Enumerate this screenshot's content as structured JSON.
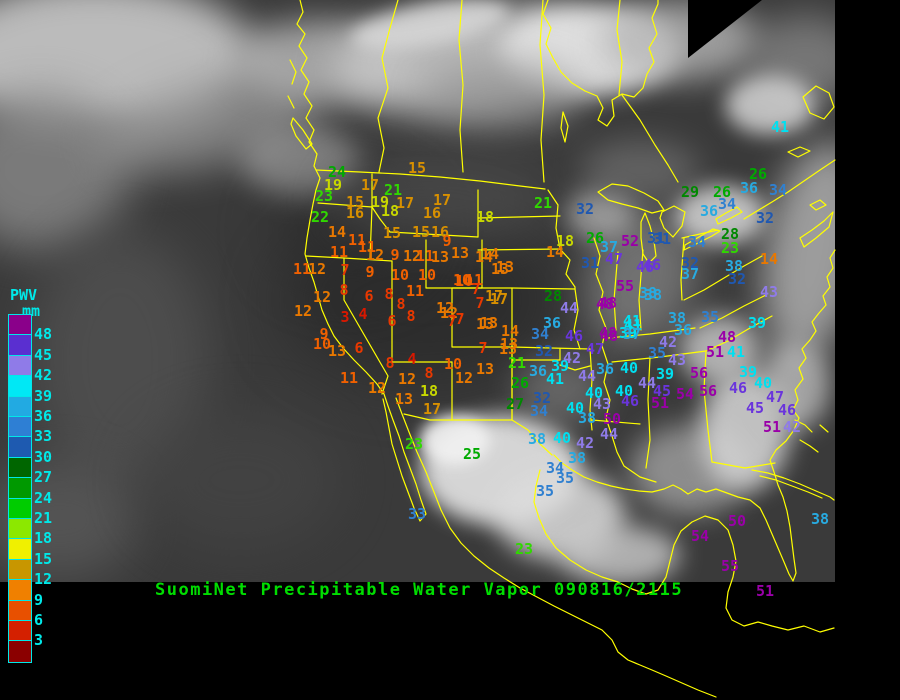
{
  "title": "SuomiNet Precipitable Water Vapor 090816/2115",
  "title_color": "#00DD00",
  "legend": {
    "title": "PWV",
    "units": "mm",
    "text_color": "#00E8E8",
    "labels": [
      "48",
      "45",
      "42",
      "39",
      "36",
      "33",
      "30",
      "27",
      "24",
      "21",
      "18",
      "15",
      "12",
      "9",
      "6",
      "3"
    ],
    "box_colors": [
      "#8A008A",
      "#5A2FD0",
      "#8F7BE8",
      "#00E8F5",
      "#22AAE2",
      "#2E7FD4",
      "#1E5AB0",
      "#006600",
      "#009900",
      "#00CC00",
      "#8CE800",
      "#F0F000",
      "#C89600",
      "#F08000",
      "#E85000",
      "#D42000",
      "#8B0000"
    ]
  },
  "station_color_bins": [
    {
      "min": 48,
      "color": "#9A00A8"
    },
    {
      "min": 45,
      "color": "#6A35DC"
    },
    {
      "min": 42,
      "color": "#8F7BE8"
    },
    {
      "min": 39,
      "color": "#00E0F0"
    },
    {
      "min": 36,
      "color": "#28AAE0"
    },
    {
      "min": 33,
      "color": "#3080D0"
    },
    {
      "min": 30,
      "color": "#2058B0"
    },
    {
      "min": 27,
      "color": "#008800"
    },
    {
      "min": 24,
      "color": "#00AA00"
    },
    {
      "min": 21,
      "color": "#30D800"
    },
    {
      "min": 18,
      "color": "#C8D800"
    },
    {
      "min": 15,
      "color": "#D89000"
    },
    {
      "min": 12,
      "color": "#E87800"
    },
    {
      "min": 9,
      "color": "#F06000"
    },
    {
      "min": 6,
      "color": "#E83800"
    },
    {
      "min": 0,
      "color": "#D81800"
    }
  ],
  "map_line_color": "#FFFF00",
  "stations": [
    [
      15,
      417,
      168
    ],
    [
      24,
      337,
      172
    ],
    [
      19,
      333,
      185
    ],
    [
      17,
      370,
      185
    ],
    [
      21,
      393,
      190
    ],
    [
      23,
      324,
      196
    ],
    [
      15,
      355,
      202
    ],
    [
      19,
      380,
      202
    ],
    [
      17,
      405,
      203
    ],
    [
      17,
      442,
      200
    ],
    [
      22,
      320,
      217
    ],
    [
      16,
      355,
      213
    ],
    [
      18,
      390,
      211
    ],
    [
      16,
      432,
      213
    ],
    [
      18,
      485,
      217
    ],
    [
      14,
      337,
      232
    ],
    [
      15,
      392,
      233
    ],
    [
      15,
      421,
      232
    ],
    [
      16,
      440,
      232
    ],
    [
      11,
      357,
      240
    ],
    [
      9,
      447,
      241
    ],
    [
      11,
      367,
      247
    ],
    [
      11,
      339,
      252
    ],
    [
      12,
      375,
      255
    ],
    [
      9,
      395,
      255
    ],
    [
      12,
      412,
      256
    ],
    [
      11,
      425,
      256
    ],
    [
      13,
      440,
      257
    ],
    [
      14,
      484,
      257
    ],
    [
      11,
      302,
      269
    ],
    [
      12,
      317,
      269
    ],
    [
      7,
      345,
      270
    ],
    [
      9,
      370,
      272
    ],
    [
      10,
      400,
      275
    ],
    [
      10,
      427,
      275
    ],
    [
      13,
      505,
      267
    ],
    [
      10,
      462,
      280
    ],
    [
      11,
      474,
      280
    ],
    [
      12,
      322,
      297
    ],
    [
      8,
      344,
      290
    ],
    [
      6,
      369,
      296
    ],
    [
      8,
      389,
      294
    ],
    [
      11,
      415,
      291
    ],
    [
      12,
      303,
      311
    ],
    [
      3,
      345,
      317
    ],
    [
      4,
      363,
      314
    ],
    [
      8,
      401,
      304
    ],
    [
      6,
      392,
      321
    ],
    [
      8,
      411,
      316
    ],
    [
      12,
      449,
      313
    ],
    [
      7,
      480,
      303
    ],
    [
      17,
      499,
      299
    ],
    [
      7,
      460,
      319
    ],
    [
      13,
      489,
      323
    ],
    [
      9,
      324,
      334
    ],
    [
      10,
      322,
      344
    ],
    [
      13,
      337,
      351
    ],
    [
      6,
      359,
      348
    ],
    [
      7,
      483,
      348
    ],
    [
      13,
      508,
      349
    ],
    [
      8,
      390,
      363
    ],
    [
      4,
      412,
      359
    ],
    [
      10,
      453,
      364
    ],
    [
      8,
      429,
      373
    ],
    [
      13,
      485,
      369
    ],
    [
      12,
      464,
      378
    ],
    [
      11,
      349,
      378
    ],
    [
      12,
      377,
      388
    ],
    [
      12,
      407,
      379
    ],
    [
      18,
      429,
      391
    ],
    [
      13,
      404,
      399
    ],
    [
      17,
      432,
      409
    ],
    [
      21,
      543,
      203
    ],
    [
      32,
      585,
      209
    ],
    [
      18,
      565,
      241
    ],
    [
      26,
      595,
      238
    ],
    [
      37,
      609,
      247
    ],
    [
      52,
      630,
      241
    ],
    [
      31,
      656,
      238
    ],
    [
      14,
      555,
      252
    ],
    [
      31,
      590,
      263
    ],
    [
      47,
      614,
      259
    ],
    [
      46,
      645,
      267
    ],
    [
      13,
      460,
      253
    ],
    [
      14,
      490,
      254
    ],
    [
      13,
      500,
      269
    ],
    [
      10,
      464,
      281
    ],
    [
      7,
      476,
      289
    ],
    [
      17,
      494,
      296
    ],
    [
      55,
      625,
      286
    ],
    [
      48,
      605,
      304
    ],
    [
      38,
      648,
      293
    ],
    [
      28,
      553,
      296
    ],
    [
      44,
      569,
      308
    ],
    [
      36,
      552,
      323
    ],
    [
      41,
      632,
      321
    ],
    [
      12,
      445,
      308
    ],
    [
      7,
      452,
      321
    ],
    [
      13,
      485,
      324
    ],
    [
      14,
      510,
      331
    ],
    [
      13,
      509,
      344
    ],
    [
      41,
      780,
      127
    ],
    [
      26,
      758,
      174
    ],
    [
      29,
      690,
      192
    ],
    [
      26,
      722,
      192
    ],
    [
      36,
      749,
      188
    ],
    [
      34,
      778,
      190
    ],
    [
      34,
      727,
      204
    ],
    [
      36,
      709,
      211
    ],
    [
      32,
      765,
      218
    ],
    [
      31,
      662,
      239
    ],
    [
      34,
      697,
      242
    ],
    [
      28,
      730,
      234
    ],
    [
      23,
      730,
      248
    ],
    [
      14,
      769,
      259
    ],
    [
      46,
      652,
      265
    ],
    [
      32,
      690,
      263
    ],
    [
      38,
      734,
      266
    ],
    [
      32,
      737,
      279
    ],
    [
      37,
      690,
      274
    ],
    [
      43,
      769,
      292
    ],
    [
      48,
      608,
      303
    ],
    [
      38,
      653,
      295
    ],
    [
      41,
      633,
      325
    ],
    [
      48,
      608,
      333
    ],
    [
      39,
      628,
      333
    ],
    [
      38,
      677,
      318
    ],
    [
      36,
      683,
      330
    ],
    [
      35,
      710,
      317
    ],
    [
      42,
      668,
      342
    ],
    [
      35,
      657,
      353
    ],
    [
      43,
      677,
      360
    ],
    [
      48,
      727,
      337
    ],
    [
      51,
      715,
      352
    ],
    [
      41,
      736,
      352
    ],
    [
      39,
      757,
      323
    ],
    [
      21,
      517,
      363
    ],
    [
      26,
      520,
      383
    ],
    [
      27,
      515,
      404
    ],
    [
      34,
      540,
      334
    ],
    [
      32,
      544,
      351
    ],
    [
      36,
      538,
      371
    ],
    [
      39,
      560,
      366
    ],
    [
      41,
      555,
      379
    ],
    [
      32,
      542,
      398
    ],
    [
      34,
      539,
      411
    ],
    [
      46,
      574,
      336
    ],
    [
      42,
      572,
      358
    ],
    [
      47,
      595,
      349
    ],
    [
      44,
      587,
      376
    ],
    [
      48,
      609,
      336
    ],
    [
      37,
      632,
      334
    ],
    [
      36,
      605,
      369
    ],
    [
      40,
      629,
      368
    ],
    [
      40,
      594,
      393
    ],
    [
      43,
      602,
      404
    ],
    [
      40,
      624,
      391
    ],
    [
      46,
      630,
      401
    ],
    [
      40,
      575,
      408
    ],
    [
      38,
      587,
      418
    ],
    [
      50,
      612,
      419
    ],
    [
      44,
      609,
      434
    ],
    [
      38,
      537,
      439
    ],
    [
      40,
      562,
      438
    ],
    [
      42,
      585,
      443
    ],
    [
      38,
      577,
      458
    ],
    [
      34,
      555,
      468
    ],
    [
      35,
      565,
      478
    ],
    [
      39,
      665,
      374
    ],
    [
      56,
      699,
      373
    ],
    [
      44,
      647,
      383
    ],
    [
      45,
      662,
      391
    ],
    [
      51,
      660,
      403
    ],
    [
      54,
      685,
      394
    ],
    [
      56,
      708,
      391
    ],
    [
      39,
      748,
      372
    ],
    [
      40,
      763,
      383
    ],
    [
      46,
      738,
      388
    ],
    [
      47,
      775,
      397
    ],
    [
      45,
      755,
      408
    ],
    [
      46,
      787,
      410
    ],
    [
      51,
      772,
      427
    ],
    [
      42,
      792,
      427
    ],
    [
      23,
      414,
      444
    ],
    [
      25,
      472,
      454
    ],
    [
      33,
      417,
      514
    ],
    [
      35,
      545,
      491
    ],
    [
      23,
      524,
      549
    ],
    [
      50,
      737,
      521
    ],
    [
      54,
      700,
      536
    ],
    [
      55,
      730,
      566
    ],
    [
      51,
      765,
      591
    ],
    [
      38,
      820,
      519
    ]
  ]
}
